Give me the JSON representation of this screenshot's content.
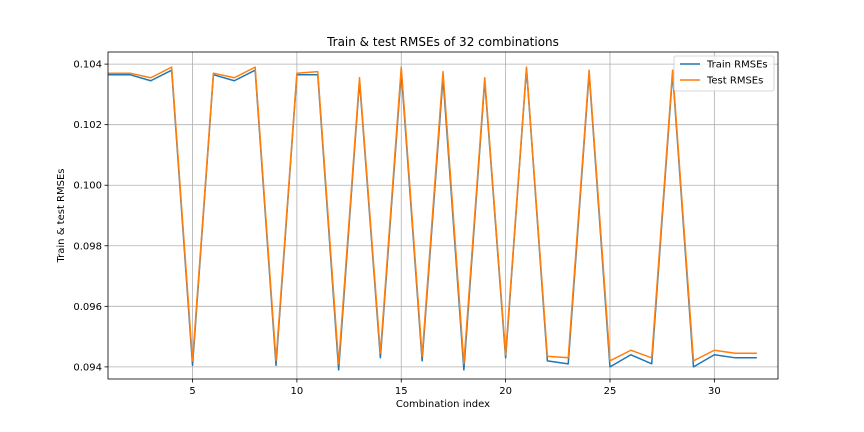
{
  "chart_data": {
    "type": "line",
    "title": "Train & test RMSEs of 32 combinations",
    "xlabel": "Combination index",
    "ylabel": "Train & test RMSEs",
    "xlim": [
      0.95,
      33.05
    ],
    "ylim": [
      0.0936,
      0.1044
    ],
    "xticks": [
      5,
      10,
      15,
      20,
      25,
      30
    ],
    "yticks": [
      0.094,
      0.096,
      0.098,
      0.1,
      0.102,
      0.104
    ],
    "ytick_labels": [
      "0.094",
      "0.096",
      "0.098",
      "0.100",
      "0.102",
      "0.104"
    ],
    "grid": true,
    "legend_position": "top-right",
    "x": [
      1,
      2,
      3,
      4,
      5,
      6,
      7,
      8,
      9,
      10,
      11,
      12,
      13,
      14,
      15,
      16,
      17,
      18,
      19,
      20,
      21,
      22,
      23,
      24,
      25,
      26,
      27,
      28,
      29,
      30,
      31,
      32
    ],
    "series": [
      {
        "name": "Train RMSEs",
        "color": "#1f77b4",
        "values": [
          0.10365,
          0.10365,
          0.10345,
          0.1038,
          0.09405,
          0.10365,
          0.10345,
          0.1038,
          0.09405,
          0.10365,
          0.10365,
          0.0939,
          0.10345,
          0.0943,
          0.10375,
          0.0942,
          0.10355,
          0.0939,
          0.10345,
          0.0943,
          0.10385,
          0.0942,
          0.0941,
          0.1037,
          0.094,
          0.0944,
          0.0941,
          0.1037,
          0.094,
          0.0944,
          0.0943,
          0.0943
        ]
      },
      {
        "name": "Test RMSEs",
        "color": "#ff7f0e",
        "values": [
          0.1037,
          0.1037,
          0.10355,
          0.1039,
          0.0942,
          0.1037,
          0.10355,
          0.1039,
          0.0942,
          0.1037,
          0.10375,
          0.0941,
          0.10355,
          0.09445,
          0.1039,
          0.09435,
          0.10375,
          0.0941,
          0.10355,
          0.0944,
          0.1039,
          0.09435,
          0.0943,
          0.1038,
          0.0942,
          0.09455,
          0.0943,
          0.1038,
          0.0942,
          0.09455,
          0.09445,
          0.09445
        ]
      }
    ]
  }
}
